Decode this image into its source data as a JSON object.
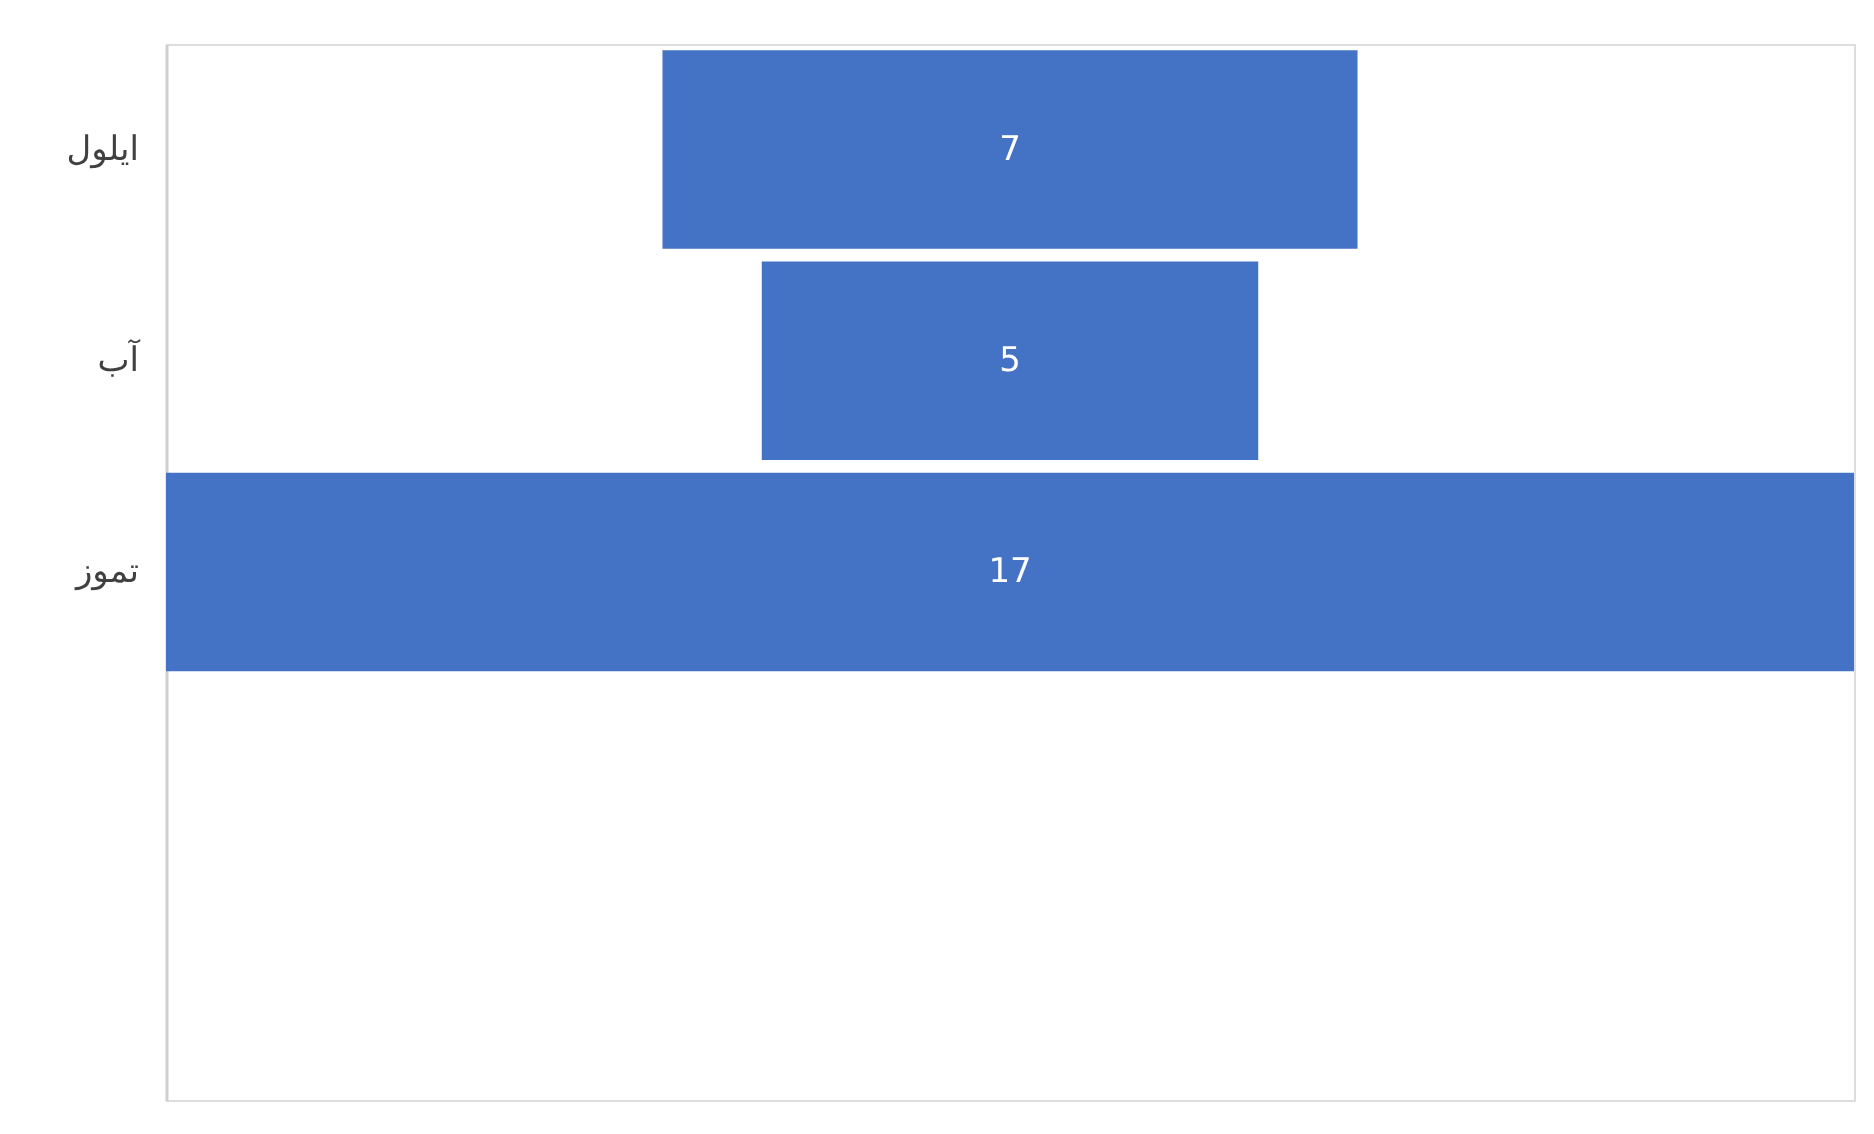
{
  "chart_data": {
    "type": "other",
    "categories": [
      "ايلول",
      "آب",
      "تموز",
      null,
      null
    ],
    "values": [
      7,
      5,
      17,
      null,
      null
    ],
    "color": "#4472c4",
    "data_labels": true
  }
}
